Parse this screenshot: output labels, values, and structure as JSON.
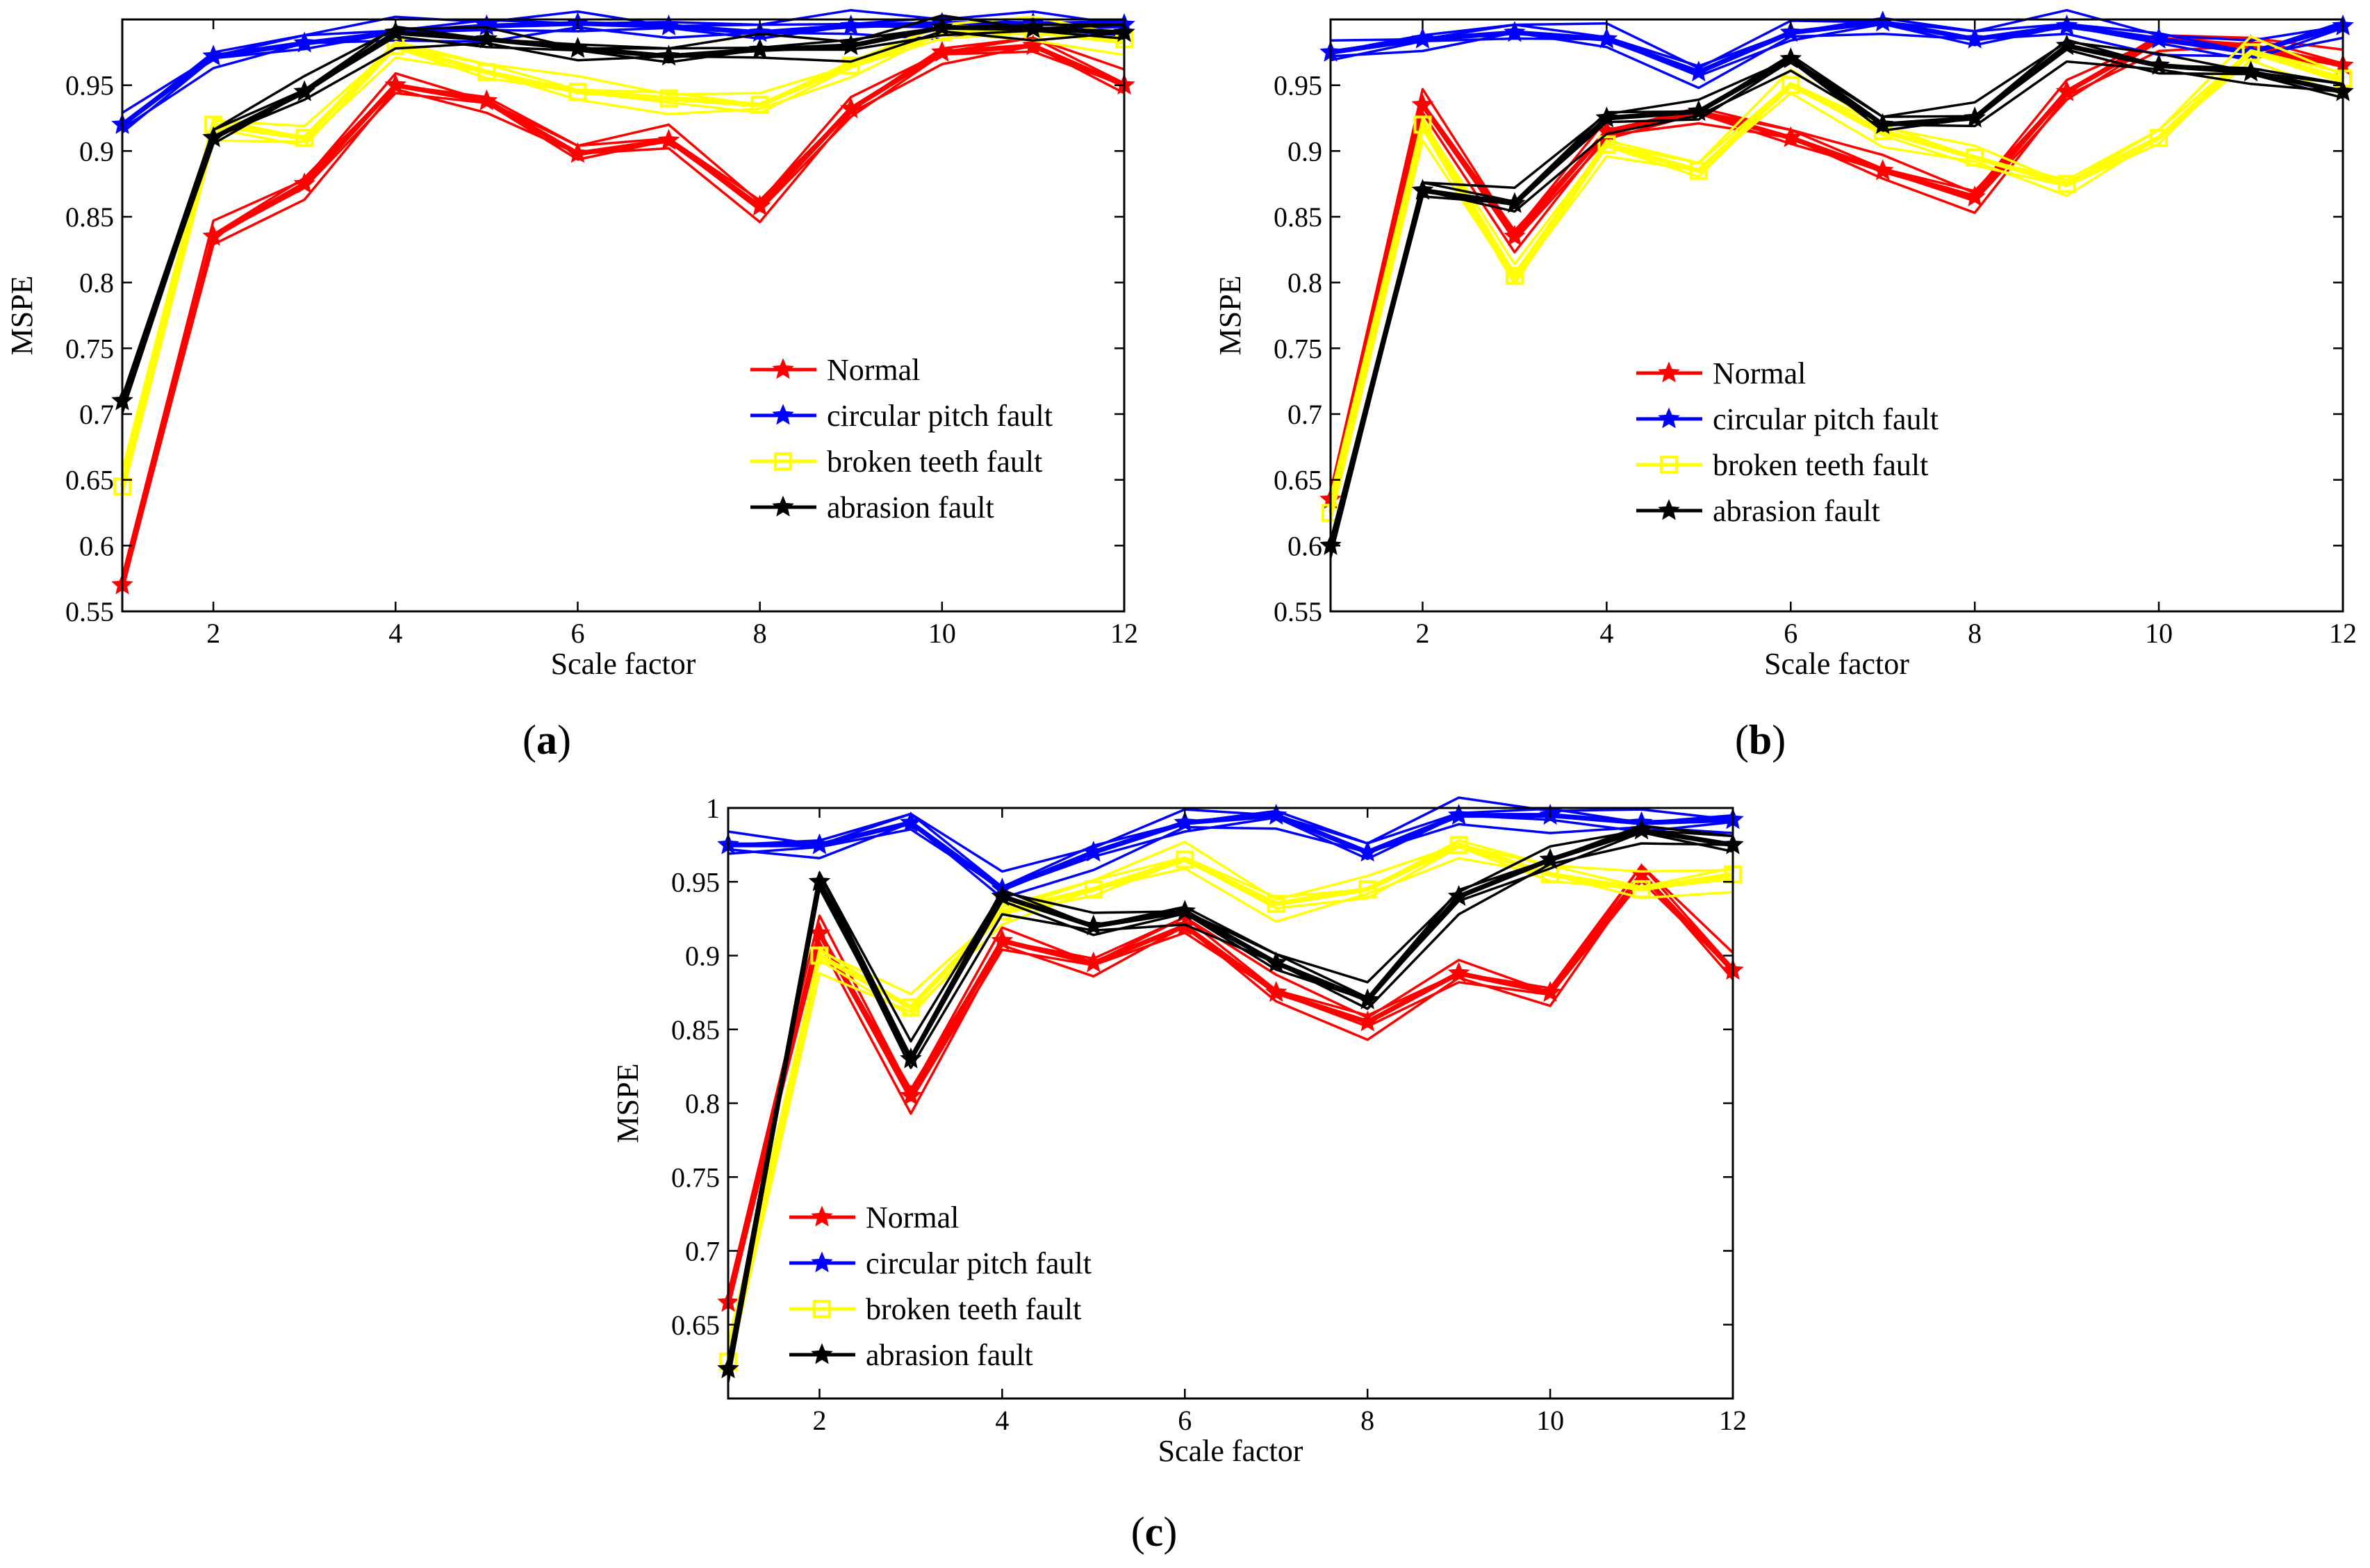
{
  "chart_data": [
    {
      "type": "line",
      "panel_label": "a",
      "xlabel": "Scale factor",
      "ylabel": "MSPE",
      "xlim": [
        1,
        12
      ],
      "ylim": [
        0.55,
        1.0
      ],
      "xticks": [
        2,
        4,
        6,
        8,
        10,
        12
      ],
      "yticks": [
        0.55,
        0.6,
        0.65,
        0.7,
        0.75,
        0.8,
        0.85,
        0.9,
        0.95
      ],
      "legend_position": "lower-right",
      "x": [
        1,
        2,
        3,
        4,
        5,
        6,
        7,
        8,
        9,
        10,
        11,
        12
      ],
      "series": [
        {
          "name": "Normal",
          "color": "#ff0000",
          "marker": "star",
          "values": [
            0.57,
            0.835,
            0.875,
            0.95,
            0.938,
            0.898,
            0.908,
            0.858,
            0.932,
            0.975,
            0.98,
            0.95
          ]
        },
        {
          "name": "circular pitch fault",
          "color": "#0000ff",
          "marker": "star",
          "values": [
            0.92,
            0.972,
            0.982,
            0.99,
            0.995,
            0.997,
            0.995,
            0.99,
            0.995,
            0.997,
            0.997,
            0.996
          ]
        },
        {
          "name": "broken teeth fault",
          "color": "#ffff00",
          "marker": "square",
          "values": [
            0.645,
            0.92,
            0.91,
            0.98,
            0.96,
            0.945,
            0.94,
            0.935,
            0.965,
            0.99,
            0.99,
            0.985
          ]
        },
        {
          "name": "abrasion fault",
          "color": "#000000",
          "marker": "star",
          "values": [
            0.71,
            0.91,
            0.945,
            0.99,
            0.985,
            0.978,
            0.972,
            0.977,
            0.98,
            0.994,
            0.993,
            0.99
          ]
        }
      ]
    },
    {
      "type": "line",
      "panel_label": "b",
      "xlabel": "Scale factor",
      "ylabel": "MSPE",
      "xlim": [
        1,
        12
      ],
      "ylim": [
        0.55,
        1.0
      ],
      "xticks": [
        2,
        4,
        6,
        8,
        10,
        12
      ],
      "yticks": [
        0.55,
        0.6,
        0.65,
        0.7,
        0.75,
        0.8,
        0.85,
        0.9,
        0.95
      ],
      "legend_position": "center-right",
      "x": [
        1,
        2,
        3,
        4,
        5,
        6,
        7,
        8,
        9,
        10,
        11,
        12
      ],
      "series": [
        {
          "name": "Normal",
          "color": "#ff0000",
          "marker": "star",
          "values": [
            0.635,
            0.935,
            0.835,
            0.915,
            0.93,
            0.91,
            0.885,
            0.865,
            0.945,
            0.985,
            0.98,
            0.965
          ]
        },
        {
          "name": "circular pitch fault",
          "color": "#0000ff",
          "marker": "star",
          "values": [
            0.975,
            0.985,
            0.99,
            0.985,
            0.96,
            0.99,
            0.998,
            0.985,
            0.995,
            0.985,
            0.975,
            0.995
          ]
        },
        {
          "name": "broken teeth fault",
          "color": "#ffff00",
          "marker": "square",
          "values": [
            0.625,
            0.92,
            0.805,
            0.905,
            0.885,
            0.95,
            0.915,
            0.895,
            0.875,
            0.91,
            0.975,
            0.955
          ]
        },
        {
          "name": "abrasion fault",
          "color": "#000000",
          "marker": "star",
          "values": [
            0.6,
            0.87,
            0.86,
            0.925,
            0.93,
            0.97,
            0.92,
            0.925,
            0.98,
            0.965,
            0.96,
            0.945
          ]
        }
      ]
    },
    {
      "type": "line",
      "panel_label": "c",
      "xlabel": "Scale factor",
      "ylabel": "MSPE",
      "xlim": [
        1,
        12
      ],
      "ylim": [
        0.6,
        1.0
      ],
      "xticks": [
        2,
        4,
        6,
        8,
        10,
        12
      ],
      "yticks": [
        0.65,
        0.7,
        0.75,
        0.8,
        0.85,
        0.9,
        0.95,
        1
      ],
      "legend_position": "lower-left",
      "x": [
        1,
        2,
        3,
        4,
        5,
        6,
        7,
        8,
        9,
        10,
        11,
        12
      ],
      "series": [
        {
          "name": "Normal",
          "color": "#ff0000",
          "marker": "star",
          "values": [
            0.665,
            0.915,
            0.805,
            0.91,
            0.895,
            0.92,
            0.875,
            0.855,
            0.888,
            0.875,
            0.955,
            0.89
          ]
        },
        {
          "name": "circular pitch fault",
          "color": "#0000ff",
          "marker": "star",
          "values": [
            0.975,
            0.975,
            0.99,
            0.945,
            0.97,
            0.99,
            0.995,
            0.97,
            0.995,
            0.995,
            0.99,
            0.992
          ]
        },
        {
          "name": "broken teeth fault",
          "color": "#ffff00",
          "marker": "square",
          "values": [
            0.625,
            0.9,
            0.865,
            0.93,
            0.945,
            0.965,
            0.935,
            0.945,
            0.975,
            0.955,
            0.945,
            0.955
          ]
        },
        {
          "name": "abrasion fault",
          "color": "#000000",
          "marker": "star",
          "values": [
            0.62,
            0.95,
            0.83,
            0.94,
            0.92,
            0.93,
            0.895,
            0.87,
            0.94,
            0.965,
            0.985,
            0.975
          ]
        }
      ]
    }
  ]
}
